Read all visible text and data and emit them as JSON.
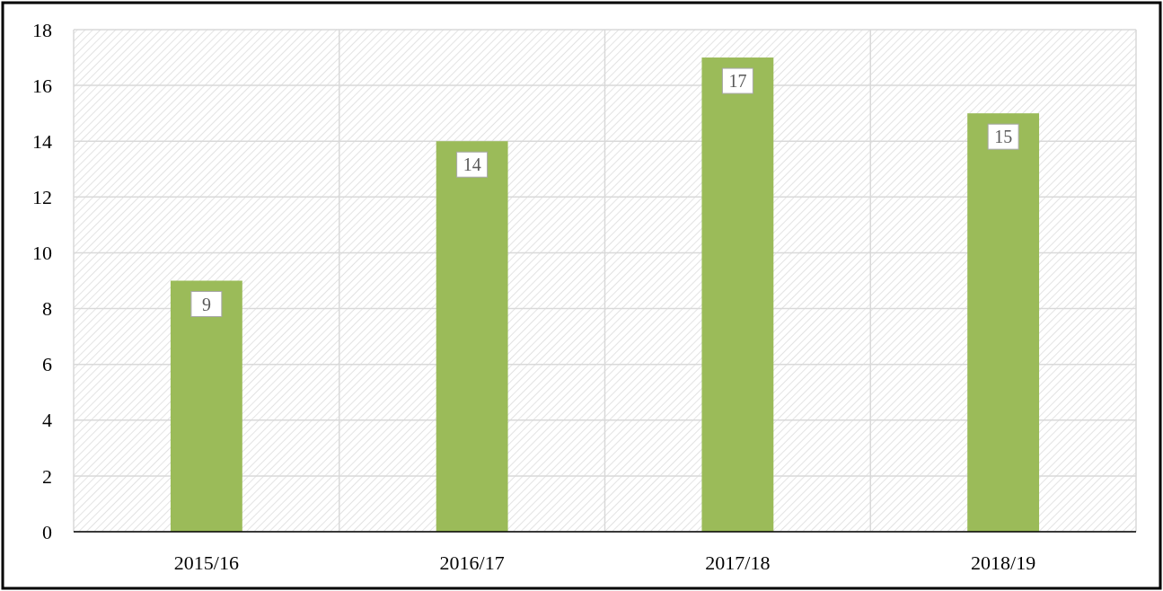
{
  "chart_data": {
    "type": "bar",
    "categories": [
      "2015/16",
      "2016/17",
      "2017/18",
      "2018/19"
    ],
    "values": [
      9,
      14,
      17,
      15
    ],
    "color": "#9bbb59",
    "ylim": [
      0,
      18
    ],
    "yticks": [
      0,
      2,
      4,
      6,
      8,
      10,
      12,
      14,
      16,
      18
    ],
    "grid": true,
    "data_labels": true
  }
}
